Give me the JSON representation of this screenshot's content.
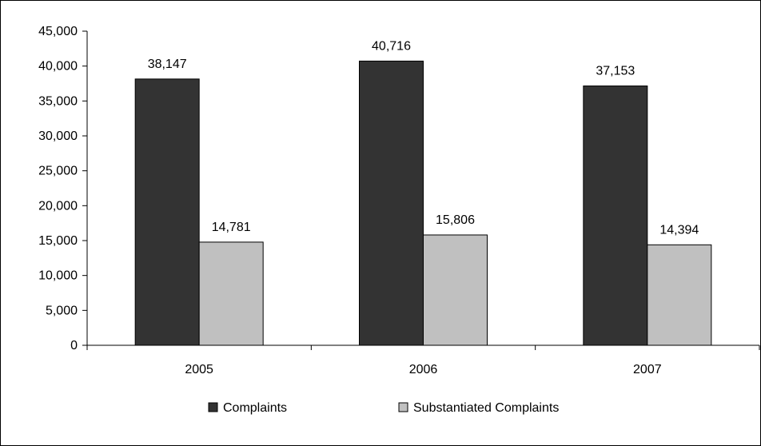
{
  "chart_data": {
    "type": "bar",
    "title": "",
    "xlabel": "",
    "ylabel": "",
    "categories": [
      "2005",
      "2006",
      "2007"
    ],
    "series": [
      {
        "name": "Complaints",
        "color": "#333333",
        "values": [
          38147,
          40716,
          37153
        ],
        "labels": [
          "38,147",
          "40,716",
          "37,153"
        ]
      },
      {
        "name": "Substantiated Complaints",
        "color": "#c0c0c0",
        "values": [
          14781,
          15806,
          14394
        ],
        "labels": [
          "14,781",
          "15,806",
          "14,394"
        ]
      }
    ],
    "ylim": [
      0,
      45000
    ],
    "yticks": [
      0,
      5000,
      10000,
      15000,
      20000,
      25000,
      30000,
      35000,
      40000,
      45000
    ],
    "ytick_labels": [
      "0",
      "5,000",
      "10,000",
      "15,000",
      "20,000",
      "25,000",
      "30,000",
      "35,000",
      "40,000",
      "45,000"
    ],
    "grid": false,
    "legend_position": "bottom"
  }
}
